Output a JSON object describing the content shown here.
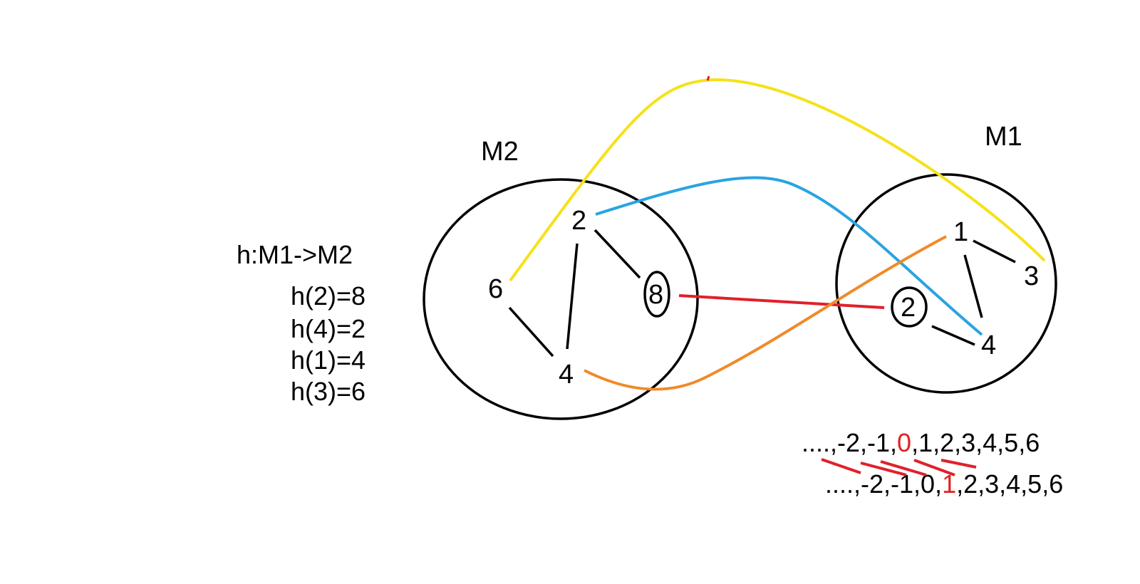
{
  "sets": {
    "m2": {
      "label": "M2",
      "elements": [
        "2",
        "6",
        "8",
        "4"
      ]
    },
    "m1": {
      "label": "M1",
      "elements": [
        "1",
        "3",
        "2",
        "4"
      ]
    }
  },
  "function": {
    "title": "h:M1->M2",
    "mappings": [
      "h(2)=8",
      "h(4)=2",
      "h(1)=4",
      "h(3)=6"
    ]
  },
  "sequences": {
    "top": {
      "prefix": "....,-2,-1,",
      "highlight": "0",
      "suffix": ",1,2,3,4,5,6"
    },
    "bottom": {
      "prefix": "....,-2,-1,0,",
      "highlight": "1",
      "suffix": ",2,3,4,5,6"
    }
  },
  "colors": {
    "ink": "#000000",
    "highlight": "#e02020",
    "yellow_arc": "#f5e21a",
    "blue_arc": "#2aa4e0",
    "red_arc": "#e0202a",
    "orange_arc": "#f08a2a"
  }
}
